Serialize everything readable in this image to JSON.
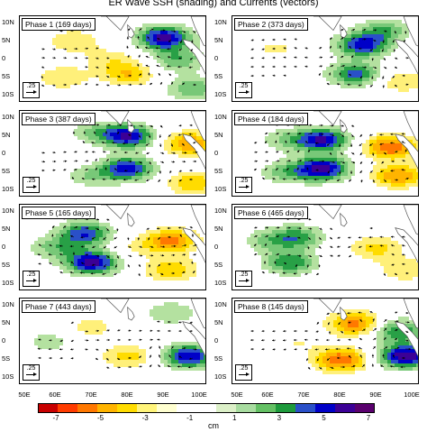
{
  "figure": {
    "title": "ER Wave SSH (shading) and Currents (vectors)"
  },
  "panels": [
    {
      "label": "Phase 1 (169 days)",
      "ref": ".25"
    },
    {
      "label": "Phase 2 (373 days)",
      "ref": ".25"
    },
    {
      "label": "Phase 3 (387 days)",
      "ref": ".25"
    },
    {
      "label": "Phase 4 (184 days)",
      "ref": ".25"
    },
    {
      "label": "Phase 5 (165 days)",
      "ref": ".25"
    },
    {
      "label": "Phase 6 (465 days)",
      "ref": ".25"
    },
    {
      "label": "Phase 7 (443 days)",
      "ref": ".25"
    },
    {
      "label": "Phase 8 (145 days)",
      "ref": ".25"
    }
  ],
  "axes": {
    "lat_ticks": [
      "10N",
      "5N",
      "0",
      "5S",
      "10S"
    ],
    "lon_ticks": [
      "50E",
      "60E",
      "70E",
      "80E",
      "90E",
      "100E"
    ]
  },
  "colorbar": {
    "labels": [
      "-7",
      "-5",
      "-3",
      "-1",
      "1",
      "3",
      "5",
      "7"
    ],
    "unit": "cm",
    "colors": [
      "#c80000",
      "#ff3c00",
      "#ff7800",
      "#ffb400",
      "#ffdc00",
      "#fff47a",
      "#ffffd0",
      "#ffffff",
      "#ffffff",
      "#dcf0c8",
      "#a8dca0",
      "#64c064",
      "#1e9a3c",
      "#2a50c8",
      "#0000c8",
      "#3c0096",
      "#5a006e"
    ]
  },
  "chart_data": {
    "type": "heatmap",
    "title": "ER Wave SSH (shading) and Currents (vectors)",
    "xlabel": "",
    "ylabel": "",
    "x_ticks": [
      "50E",
      "60E",
      "70E",
      "80E",
      "90E",
      "100E"
    ],
    "y_ticks": [
      "10N",
      "5N",
      "0",
      "5S",
      "10S"
    ],
    "xlim": [
      50,
      102
    ],
    "ylim": [
      -12,
      12
    ],
    "colorbar_range": [
      -7,
      7
    ],
    "colorbar_unit": "cm",
    "reference_vector": 0.25,
    "panels": [
      {
        "name": "Phase 1 (169 days)",
        "features": [
          {
            "lon": 90,
            "lat": 6,
            "ssh": 6.5
          },
          {
            "lon": 94,
            "lat": 0,
            "ssh": 3
          },
          {
            "lon": 80,
            "lat": -4,
            "ssh": -3
          },
          {
            "lon": 65,
            "lat": 5,
            "ssh": -2
          },
          {
            "lon": 62,
            "lat": -5,
            "ssh": -2
          },
          {
            "lon": 98,
            "lat": -8,
            "ssh": 3
          },
          {
            "lon": 75,
            "lat": 0,
            "ssh": -1.5
          }
        ]
      },
      {
        "name": "Phase 2 (373 days)",
        "features": [
          {
            "lon": 86,
            "lat": 4,
            "ssh": 5.5
          },
          {
            "lon": 84,
            "lat": -4,
            "ssh": 4.5
          },
          {
            "lon": 92,
            "lat": 8,
            "ssh": 3
          },
          {
            "lon": 62,
            "lat": 3,
            "ssh": -1.2
          },
          {
            "lon": 97,
            "lat": -6,
            "ssh": -2
          },
          {
            "lon": 58,
            "lat": -8,
            "ssh": -1
          }
        ]
      },
      {
        "name": "Phase 3 (387 days)",
        "features": [
          {
            "lon": 80,
            "lat": 5,
            "ssh": 6
          },
          {
            "lon": 80,
            "lat": -4,
            "ssh": 5.5
          },
          {
            "lon": 71,
            "lat": 6,
            "ssh": 2
          },
          {
            "lon": 70,
            "lat": -6,
            "ssh": 2
          },
          {
            "lon": 97,
            "lat": 3,
            "ssh": -4
          },
          {
            "lon": 98,
            "lat": -8,
            "ssh": -3
          },
          {
            "lon": 60,
            "lat": 0,
            "ssh": -1
          }
        ]
      },
      {
        "name": "Phase 4 (184 days)",
        "features": [
          {
            "lon": 75,
            "lat": 4,
            "ssh": 6
          },
          {
            "lon": 75,
            "lat": -4,
            "ssh": 6.5
          },
          {
            "lon": 65,
            "lat": 4,
            "ssh": 2
          },
          {
            "lon": 65,
            "lat": -5,
            "ssh": 2.5
          },
          {
            "lon": 94,
            "lat": 2,
            "ssh": -5
          },
          {
            "lon": 96,
            "lat": -6,
            "ssh": -4
          }
        ]
      },
      {
        "name": "Phase 5 (165 days)",
        "features": [
          {
            "lon": 68,
            "lat": 4,
            "ssh": 5
          },
          {
            "lon": 70,
            "lat": -4,
            "ssh": 6.5
          },
          {
            "lon": 60,
            "lat": 0,
            "ssh": 2.5
          },
          {
            "lon": 92,
            "lat": 2,
            "ssh": -4.5
          },
          {
            "lon": 92,
            "lat": -6,
            "ssh": -3
          },
          {
            "lon": 82,
            "lat": 0,
            "ssh": -1
          }
        ]
      },
      {
        "name": "Phase 6 (465 days)",
        "features": [
          {
            "lon": 68,
            "lat": 3,
            "ssh": 3.5
          },
          {
            "lon": 66,
            "lat": -4,
            "ssh": 4
          },
          {
            "lon": 60,
            "lat": 2,
            "ssh": 2
          },
          {
            "lon": 90,
            "lat": 0,
            "ssh": -2.5
          },
          {
            "lon": 98,
            "lat": -6,
            "ssh": -2
          }
        ]
      },
      {
        "name": "Phase 7 (443 days)",
        "features": [
          {
            "lon": 80,
            "lat": -4,
            "ssh": -2.5
          },
          {
            "lon": 70,
            "lat": 4,
            "ssh": -1.5
          },
          {
            "lon": 97,
            "lat": -4,
            "ssh": 6
          },
          {
            "lon": 92,
            "lat": 8,
            "ssh": 2
          },
          {
            "lon": 58,
            "lat": 0,
            "ssh": 1.5
          }
        ]
      },
      {
        "name": "Phase 8 (145 days)",
        "features": [
          {
            "lon": 84,
            "lat": 5,
            "ssh": -4.5
          },
          {
            "lon": 80,
            "lat": -5,
            "ssh": -5
          },
          {
            "lon": 98,
            "lat": -4,
            "ssh": 7
          },
          {
            "lon": 96,
            "lat": 3,
            "ssh": 4
          },
          {
            "lon": 68,
            "lat": 0,
            "ssh": -1
          }
        ]
      }
    ]
  }
}
